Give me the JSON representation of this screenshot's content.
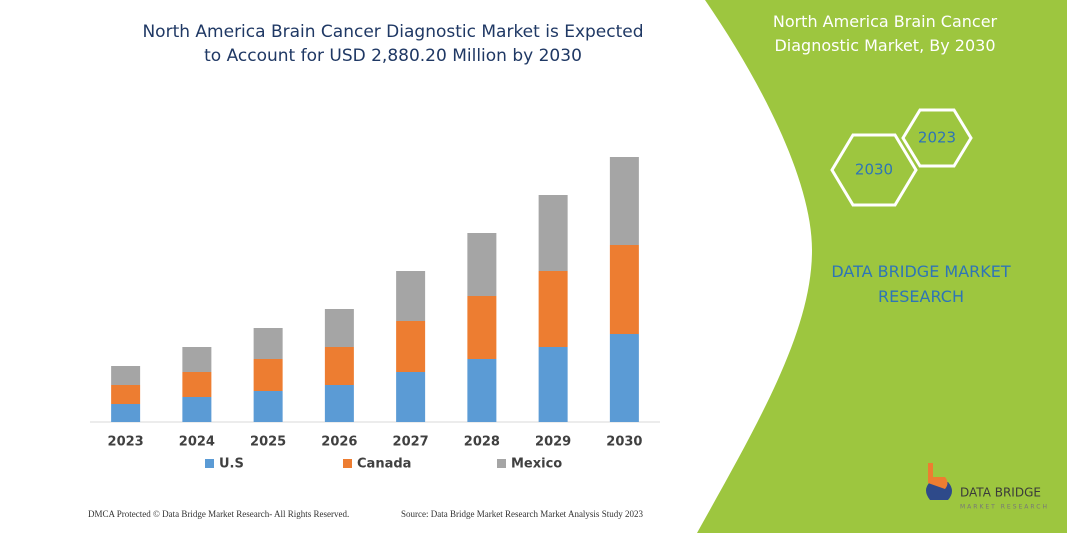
{
  "chart_data": {
    "type": "stacked-bar",
    "title": "North America Brain Cancer Diagnostic Market is Expected to Account for USD 2,880.20 Million by 2030",
    "categories": [
      "2023",
      "2024",
      "2025",
      "2026",
      "2027",
      "2028",
      "2029",
      "2030"
    ],
    "series": [
      {
        "name": "U.S",
        "color": "#5b9bd5",
        "values": [
          18,
          25,
          31,
          37,
          50,
          63,
          75,
          88
        ]
      },
      {
        "name": "Canada",
        "color": "#ed7d31",
        "values": [
          19,
          25,
          32,
          38,
          51,
          63,
          76,
          89
        ]
      },
      {
        "name": "Mexico",
        "color": "#a5a5a5",
        "values": [
          19,
          25,
          31,
          38,
          50,
          63,
          76,
          88
        ]
      }
    ],
    "ylim": [
      0,
      280
    ],
    "legend": "bottom"
  },
  "side_panel": {
    "title": "North America Brain Cancer Diagnostic Market, By 2030",
    "badges": [
      "2030",
      "2023"
    ],
    "brand": "DATA BRIDGE MARKET RESEARCH"
  },
  "footer": {
    "left": "DMCA Protected © Data Bridge Market Research- All Rights Reserved.",
    "right": "Source: Data Bridge Market Research Market Analysis Study 2023"
  },
  "logo": {
    "name": "DATA BRIDGE",
    "tagline": "MARKET RESEARCH"
  }
}
